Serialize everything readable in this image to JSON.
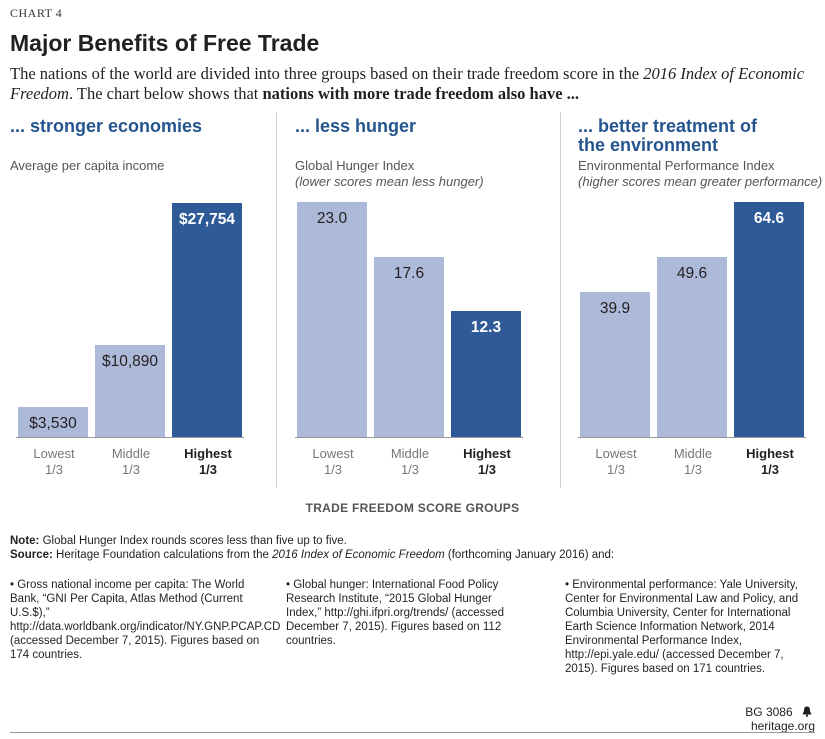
{
  "header": {
    "chart_number": "CHART 4",
    "title": "Major Benefits of Free Trade",
    "subtitle_part1": "The nations of the world are divided into three groups based on their trade freedom score in the ",
    "subtitle_italic": "2016 Index of Economic Freedom",
    "subtitle_part2": ". The chart below shows that ",
    "subtitle_bold": "nations with more trade freedom also have ..."
  },
  "axis_title": "TRADE FREEDOM SCORE GROUPS",
  "colors": {
    "light_bar": "#adb9d9",
    "dark_bar": "#2e5a97",
    "accent": "#25558f"
  },
  "chart_data": [
    {
      "type": "bar",
      "heading": "... stronger economies",
      "metric": "Average per capita income",
      "metric_note": "",
      "categories": [
        "Lowest 1/3",
        "Middle 1/3",
        "Highest 1/3"
      ],
      "values": [
        3530,
        10890,
        27754
      ],
      "value_labels": [
        "$3,530",
        "$10,890",
        "$27,754"
      ],
      "ylim": [
        0,
        28500
      ]
    },
    {
      "type": "bar",
      "heading": "... less hunger",
      "metric": "Global Hunger Index",
      "metric_note": "(lower scores mean less hunger)",
      "categories": [
        "Lowest 1/3",
        "Middle 1/3",
        "Highest 1/3"
      ],
      "values": [
        23.0,
        17.6,
        12.3
      ],
      "value_labels": [
        "23.0",
        "17.6",
        "12.3"
      ],
      "ylim": [
        0,
        23.5
      ]
    },
    {
      "type": "bar",
      "heading": "... better treatment of the environment",
      "metric": "Environmental Performance Index",
      "metric_note": "(higher scores mean greater performance)",
      "categories": [
        "Lowest 1/3",
        "Middle 1/3",
        "Highest 1/3"
      ],
      "values": [
        39.9,
        49.6,
        64.6
      ],
      "value_labels": [
        "39.9",
        "49.6",
        "64.6"
      ],
      "ylim": [
        0,
        66
      ]
    }
  ],
  "category_lines": [
    {
      "line1": "Lowest",
      "line2": "1/3"
    },
    {
      "line1": "Middle",
      "line2": "1/3"
    },
    {
      "line1": "Highest",
      "line2": "1/3"
    }
  ],
  "notes": {
    "note_label": "Note:",
    "note_text": " Global Hunger Index rounds scores less than five up to five.",
    "source_label": "Source:",
    "source_text1": " Heritage Foundation calculations from the ",
    "source_italic": "2016 Index of Economic Freedom",
    "source_text2": " (forthcoming January 2016) and:"
  },
  "sources": [
    "• Gross national income per capita: The World Bank, “GNI Per Capita, Atlas Method (Current U.S.$),” http://data.worldbank.org/indicator/NY.GNP.PCAP.CD (accessed December 7, 2015). Figures based on 174 countries.",
    "• Global hunger: International Food Policy Research Institute, “2015 Global Hunger Index,” http://ghi.ifpri.org/trends/ (accessed December 7, 2015). Figures based on 112 countries.",
    "• Environmental performance: Yale University, Center for Environmental Law and Policy, and Columbia University, Center for International Earth Science Information Network, 2014 Environmental Performance Index, http://epi.yale.edu/ (accessed December 7, 2015). Figures based on 171 countries."
  ],
  "footer": {
    "code": "BG 3086",
    "site_icon": "bell-icon",
    "site": "heritage.org"
  }
}
